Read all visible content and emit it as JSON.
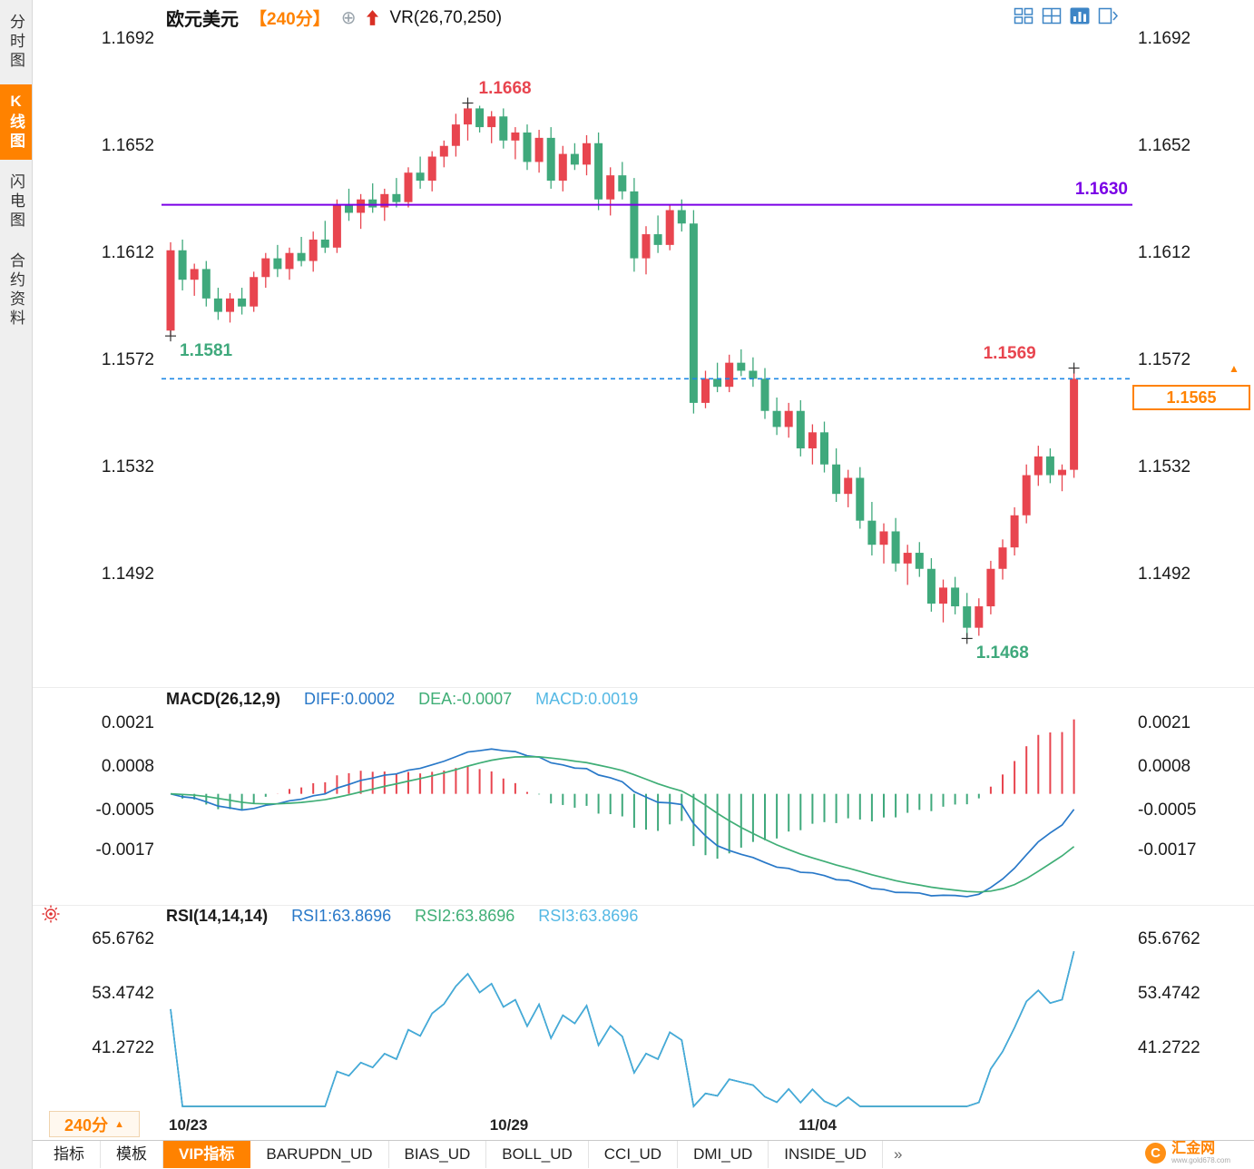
{
  "sidebar": {
    "items": [
      {
        "label": "分时图",
        "active": false
      },
      {
        "label": "K线图",
        "active": true
      },
      {
        "label": "闪电图",
        "active": false
      },
      {
        "label": "合约资料",
        "active": false
      }
    ]
  },
  "header": {
    "symbol": "欧元美元",
    "period": "【240分】",
    "vr_label": "VR(26,70,250)"
  },
  "toolbar": {
    "icons": [
      {
        "name": "grid-layout"
      },
      {
        "name": "split-pane"
      },
      {
        "name": "bar-chart"
      },
      {
        "name": "pan-right"
      }
    ],
    "active_index": 2
  },
  "colors": {
    "up": "#e8454f",
    "down": "#3fa97c",
    "purple_line": "#7a00e6",
    "dashed_line": "#1e88e5",
    "accent_orange": "#ff8200",
    "diff_blue": "#2878c8",
    "dea_green": "#3fae76",
    "macd_cyan": "#54b8e4",
    "rsi_line": "#45aadc"
  },
  "chart_data": {
    "type": "candlestick",
    "title": "欧元美元 240分",
    "ylim": [
      1.14512,
      1.1697
    ],
    "y_ticks": [
      "1.1692",
      "1.1652",
      "1.1612",
      "1.1572",
      "1.1532",
      "1.1492"
    ],
    "x_tick_labels": [
      {
        "label": "10/23",
        "index": 0
      },
      {
        "label": "10/29",
        "index": 27
      },
      {
        "label": "11/04",
        "index": 53
      }
    ],
    "hlines": [
      {
        "price": 1.163,
        "label": "1.1630",
        "style": "solid",
        "color_key": "purple_line"
      },
      {
        "price": 1.1565,
        "style": "dashed",
        "color_key": "dashed_line"
      }
    ],
    "last_price": {
      "value": 1.1565,
      "label": "1.1565"
    },
    "annotations": [
      {
        "label": "1.1581",
        "price": 1.1581,
        "candle": 0,
        "placement": "below-right",
        "color_key": "down"
      },
      {
        "label": "1.1668",
        "price": 1.1668,
        "candle": 25,
        "placement": "above-right",
        "color_key": "up"
      },
      {
        "label": "1.1468",
        "price": 1.1468,
        "candle": 67,
        "placement": "below-right",
        "color_key": "down"
      },
      {
        "label": "1.1569",
        "price": 1.1569,
        "candle": 76,
        "placement": "above-left",
        "color_key": "up"
      }
    ],
    "candles": [
      [
        1.1583,
        1.1616,
        1.1581,
        1.1613
      ],
      [
        1.1613,
        1.1617,
        1.1598,
        1.1602
      ],
      [
        1.1602,
        1.1608,
        1.1596,
        1.1606
      ],
      [
        1.1606,
        1.1609,
        1.1592,
        1.1595
      ],
      [
        1.1595,
        1.1599,
        1.1587,
        1.159
      ],
      [
        1.159,
        1.1597,
        1.1586,
        1.1595
      ],
      [
        1.1595,
        1.1599,
        1.1589,
        1.1592
      ],
      [
        1.1592,
        1.1605,
        1.159,
        1.1603
      ],
      [
        1.1603,
        1.1612,
        1.1599,
        1.161
      ],
      [
        1.161,
        1.1615,
        1.1603,
        1.1606
      ],
      [
        1.1606,
        1.1614,
        1.1602,
        1.1612
      ],
      [
        1.1612,
        1.1618,
        1.1607,
        1.1609
      ],
      [
        1.1609,
        1.162,
        1.1605,
        1.1617
      ],
      [
        1.1617,
        1.1624,
        1.1612,
        1.1614
      ],
      [
        1.1614,
        1.1632,
        1.1612,
        1.163
      ],
      [
        1.163,
        1.1636,
        1.1624,
        1.1627
      ],
      [
        1.1627,
        1.1634,
        1.1621,
        1.1632
      ],
      [
        1.1632,
        1.1638,
        1.1627,
        1.1629
      ],
      [
        1.1629,
        1.1636,
        1.1624,
        1.1634
      ],
      [
        1.1634,
        1.164,
        1.1629,
        1.1631
      ],
      [
        1.1631,
        1.1644,
        1.1629,
        1.1642
      ],
      [
        1.1642,
        1.1648,
        1.1636,
        1.1639
      ],
      [
        1.1639,
        1.165,
        1.1635,
        1.1648
      ],
      [
        1.1648,
        1.1654,
        1.1644,
        1.1652
      ],
      [
        1.1652,
        1.1664,
        1.1648,
        1.166
      ],
      [
        1.166,
        1.1668,
        1.1654,
        1.1666
      ],
      [
        1.1666,
        1.1667,
        1.1657,
        1.1659
      ],
      [
        1.1659,
        1.1665,
        1.1653,
        1.1663
      ],
      [
        1.1663,
        1.1666,
        1.1651,
        1.1654
      ],
      [
        1.1654,
        1.1659,
        1.1647,
        1.1657
      ],
      [
        1.1657,
        1.166,
        1.1643,
        1.1646
      ],
      [
        1.1646,
        1.1658,
        1.1642,
        1.1655
      ],
      [
        1.1655,
        1.1659,
        1.1636,
        1.1639
      ],
      [
        1.1639,
        1.1652,
        1.1635,
        1.1649
      ],
      [
        1.1649,
        1.1653,
        1.1643,
        1.1645
      ],
      [
        1.1645,
        1.1656,
        1.1641,
        1.1653
      ],
      [
        1.1653,
        1.1657,
        1.1628,
        1.1632
      ],
      [
        1.1632,
        1.1644,
        1.1626,
        1.1641
      ],
      [
        1.1641,
        1.1646,
        1.1632,
        1.1635
      ],
      [
        1.1635,
        1.164,
        1.1605,
        1.161
      ],
      [
        1.161,
        1.1622,
        1.1604,
        1.1619
      ],
      [
        1.1619,
        1.1626,
        1.1612,
        1.1615
      ],
      [
        1.1615,
        1.163,
        1.1613,
        1.1628
      ],
      [
        1.1628,
        1.1632,
        1.162,
        1.1623
      ],
      [
        1.1623,
        1.1628,
        1.1552,
        1.1556
      ],
      [
        1.1556,
        1.1568,
        1.1554,
        1.1565
      ],
      [
        1.1565,
        1.1571,
        1.156,
        1.1562
      ],
      [
        1.1562,
        1.1574,
        1.156,
        1.1571
      ],
      [
        1.1571,
        1.1576,
        1.1566,
        1.1568
      ],
      [
        1.1568,
        1.1573,
        1.1562,
        1.1565
      ],
      [
        1.1565,
        1.1569,
        1.155,
        1.1553
      ],
      [
        1.1553,
        1.1558,
        1.1544,
        1.1547
      ],
      [
        1.1547,
        1.1556,
        1.1543,
        1.1553
      ],
      [
        1.1553,
        1.1557,
        1.1536,
        1.1539
      ],
      [
        1.1539,
        1.1548,
        1.1533,
        1.1545
      ],
      [
        1.1545,
        1.1549,
        1.153,
        1.1533
      ],
      [
        1.1533,
        1.1539,
        1.1519,
        1.1522
      ],
      [
        1.1522,
        1.1531,
        1.1517,
        1.1528
      ],
      [
        1.1528,
        1.1532,
        1.1509,
        1.1512
      ],
      [
        1.1512,
        1.1519,
        1.1499,
        1.1503
      ],
      [
        1.1503,
        1.1511,
        1.1496,
        1.1508
      ],
      [
        1.1508,
        1.1513,
        1.1493,
        1.1496
      ],
      [
        1.1496,
        1.1503,
        1.1488,
        1.15
      ],
      [
        1.15,
        1.1504,
        1.1491,
        1.1494
      ],
      [
        1.1494,
        1.1498,
        1.1478,
        1.1481
      ],
      [
        1.1481,
        1.149,
        1.1474,
        1.1487
      ],
      [
        1.1487,
        1.1491,
        1.1477,
        1.148
      ],
      [
        1.148,
        1.1485,
        1.1468,
        1.1472
      ],
      [
        1.1472,
        1.1483,
        1.1469,
        1.148
      ],
      [
        1.148,
        1.1497,
        1.1477,
        1.1494
      ],
      [
        1.1494,
        1.1505,
        1.149,
        1.1502
      ],
      [
        1.1502,
        1.1517,
        1.1499,
        1.1514
      ],
      [
        1.1514,
        1.1533,
        1.1511,
        1.1529
      ],
      [
        1.1529,
        1.154,
        1.1525,
        1.1536
      ],
      [
        1.1536,
        1.1539,
        1.1526,
        1.1529
      ],
      [
        1.1529,
        1.1533,
        1.1523,
        1.1531
      ],
      [
        1.1531,
        1.1569,
        1.1528,
        1.1565
      ]
    ]
  },
  "macd_panel": {
    "title": "MACD(26,12,9)",
    "values": [
      {
        "label": "DIFF:0.0002",
        "color_key": "diff_blue"
      },
      {
        "label": "DEA:-0.0007",
        "color_key": "dea_green"
      },
      {
        "label": "MACD:0.0019",
        "color_key": "macd_cyan"
      }
    ],
    "y_ticks": [
      "0.0021",
      "0.0008",
      "-0.0005",
      "-0.0017"
    ],
    "ylim": [
      -0.00326,
      0.00251
    ],
    "params": {
      "slow": 26,
      "fast": 12,
      "signal": 9
    }
  },
  "rsi_panel": {
    "title": "RSI(14,14,14)",
    "values": [
      {
        "label": "RSI1:63.8696",
        "color_key": "diff_blue"
      },
      {
        "label": "RSI2:63.8696",
        "color_key": "dea_green"
      },
      {
        "label": "RSI3:63.8696",
        "color_key": "macd_cyan"
      }
    ],
    "y_ticks": [
      "65.6762",
      "53.4742",
      "41.2722"
    ],
    "ylim": [
      27.6,
      68.3
    ],
    "period": 14
  },
  "period_selector": {
    "label": "240分"
  },
  "tabs": {
    "items": [
      {
        "label": "指标",
        "active": false
      },
      {
        "label": "模板",
        "active": false
      },
      {
        "label": "VIP指标",
        "active": true
      },
      {
        "label": "BARUPDN_UD",
        "active": false
      },
      {
        "label": "BIAS_UD",
        "active": false
      },
      {
        "label": "BOLL_UD",
        "active": false
      },
      {
        "label": "CCI_UD",
        "active": false
      },
      {
        "label": "DMI_UD",
        "active": false
      },
      {
        "label": "INSIDE_UD",
        "active": false
      }
    ],
    "more_label": "»"
  },
  "logo": {
    "name": "汇金网",
    "url": "www.gold678.com"
  }
}
